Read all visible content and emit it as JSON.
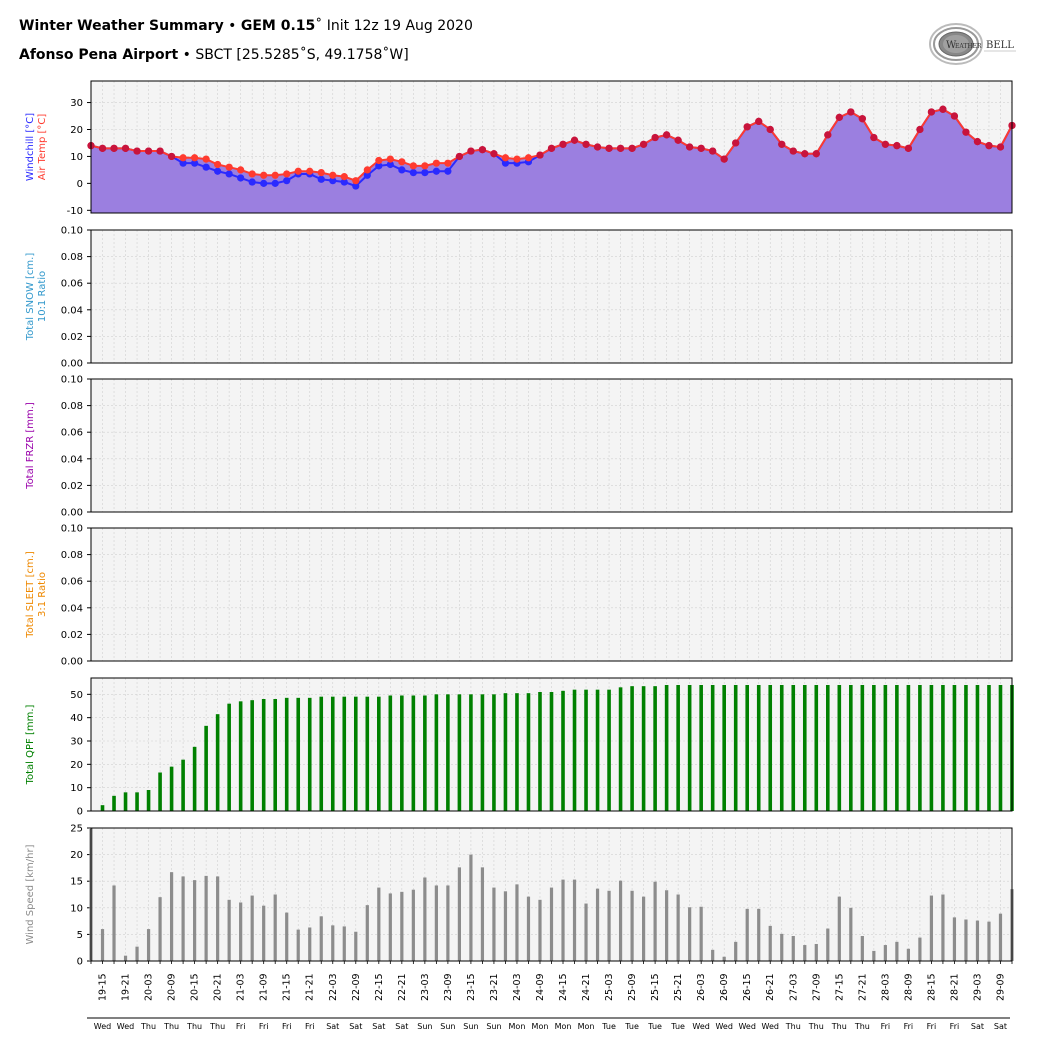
{
  "header": {
    "title_bold": "Winter Weather Summary",
    "sep": " • ",
    "model_bold": "GEM 0.15",
    "degree": "˚",
    "init": " Init 12z 19 Aug 2020",
    "station_bold": "Afonso Pena Airport",
    "station_info": "SBCT [25.5285˚S, 49.1758˚W]"
  },
  "logo": {
    "text_big": "W",
    "text_small": "EATHER",
    "text_bell": "BELL",
    "icon": "weatherbell-swirl-icon"
  },
  "colors": {
    "temp_fill": "#9b7fe0",
    "airtemp": "#ff3b2f",
    "windchill": "#2a2aff",
    "overlap": "#c8143c",
    "qpf": "#008000",
    "wind": "#8c8c8c",
    "snow_label": "#3399cc",
    "frzr_label": "#9900aa",
    "sleet_label": "#ee8800",
    "qpf_label": "#008000",
    "wind_label": "#8c8c8c",
    "panel_bg": "#f4f4f4",
    "grid": "#d0d0d0"
  },
  "chart_data": [
    {
      "type": "line",
      "ylabel_parts": [
        "Windchill [°C]",
        "Air Temp [°C]"
      ],
      "ylim": [
        -11,
        38
      ],
      "yticks": [
        -10,
        0,
        10,
        20,
        30
      ],
      "grid": true,
      "series": [
        {
          "name": "Air Temp",
          "values": [
            14,
            13,
            13,
            13,
            12,
            12,
            12,
            10,
            9.5,
            9.5,
            9,
            7,
            6,
            5,
            3.5,
            3,
            3,
            3.5,
            4.5,
            4.5,
            4,
            3,
            2.5,
            1,
            5,
            8.5,
            9,
            8,
            6.5,
            6.5,
            7.5,
            7.5,
            10,
            12,
            12.5,
            11,
            9.5,
            9,
            9.5,
            10.5,
            13,
            14.5,
            16,
            14.5,
            13.5,
            13,
            13,
            13,
            14.5,
            17,
            18,
            16,
            13.5,
            13,
            12,
            9,
            15,
            21,
            23,
            20,
            14.5,
            12,
            11,
            11,
            18,
            24.5,
            26.5,
            24,
            17,
            14.5,
            14,
            13,
            20,
            26.5,
            27.5,
            25,
            19,
            15.5,
            14,
            13.5,
            21.5
          ]
        },
        {
          "name": "Windchill",
          "values": [
            14,
            13,
            13,
            13,
            12,
            12,
            12,
            10,
            7.5,
            7.5,
            6,
            4.5,
            3.5,
            2,
            0.5,
            0,
            0,
            1,
            3.5,
            3.5,
            1.5,
            1,
            0.5,
            -1,
            3,
            6.5,
            7,
            5,
            4,
            4,
            4.5,
            4.5,
            10,
            12,
            12.5,
            11,
            7.5,
            7.5,
            8,
            10.5,
            13,
            14.5,
            16,
            14.5,
            13.5,
            13,
            13,
            13,
            14.5,
            17,
            18,
            16,
            13.5,
            13,
            12,
            9,
            15,
            21,
            23,
            20,
            14.5,
            12,
            11,
            11,
            18,
            24.5,
            26.5,
            24,
            17,
            14.5,
            14,
            13,
            20,
            26.5,
            27.5,
            25,
            19,
            15.5,
            14,
            13.5,
            21.5
          ]
        }
      ]
    },
    {
      "type": "bar",
      "ylabel": "Total SNOW [cm.]",
      "ylabel2": "10:1 Ratio",
      "ylim": [
        0,
        0.1
      ],
      "yticks": [
        "0.00",
        "0.02",
        "0.04",
        "0.06",
        "0.08",
        "0.10"
      ],
      "grid": true,
      "values": []
    },
    {
      "type": "bar",
      "ylabel": "Total FRZR [mm.]",
      "ylim": [
        0,
        0.1
      ],
      "yticks": [
        "0.00",
        "0.02",
        "0.04",
        "0.06",
        "0.08",
        "0.10"
      ],
      "grid": true,
      "values": []
    },
    {
      "type": "bar",
      "ylabel": "Total SLEET [cm.]",
      "ylabel2": "3:1 Ratio",
      "ylim": [
        0,
        0.1
      ],
      "yticks": [
        "0.00",
        "0.02",
        "0.04",
        "0.06",
        "0.08",
        "0.10"
      ],
      "grid": true,
      "values": []
    },
    {
      "type": "bar",
      "ylabel": "Total QPF [mm.]",
      "ylim": [
        0,
        57
      ],
      "yticks": [
        0,
        10,
        20,
        30,
        40,
        50
      ],
      "grid": true,
      "values": [
        0,
        2.5,
        6.5,
        8,
        8,
        9,
        16.5,
        19,
        22,
        27.5,
        36.5,
        41.5,
        46,
        47,
        47.5,
        48,
        48,
        48.5,
        48.5,
        48.5,
        49,
        49,
        49,
        49,
        49,
        49,
        49.5,
        49.5,
        49.5,
        49.5,
        50,
        50,
        50,
        50,
        50,
        50,
        50.5,
        50.5,
        50.5,
        51,
        51,
        51.5,
        52,
        52,
        52,
        52,
        53,
        53.5,
        53.5,
        53.5,
        54,
        54,
        54,
        54,
        54,
        54,
        54,
        54,
        54,
        54,
        54,
        54,
        54,
        54,
        54,
        54,
        54,
        54,
        54,
        54,
        54,
        54,
        54,
        54,
        54,
        54,
        54,
        54,
        54,
        54,
        54
      ]
    },
    {
      "type": "bar",
      "ylabel": "Wind Speed [km/hr]",
      "ylim": [
        0,
        25
      ],
      "yticks": [
        0,
        5,
        10,
        15,
        20,
        25
      ],
      "grid": true,
      "values": [
        25,
        6,
        14.2,
        1,
        2.7,
        6,
        12,
        16.7,
        15.9,
        15.2,
        16,
        15.9,
        11.5,
        11,
        12.3,
        10.4,
        12.5,
        9.1,
        5.9,
        6.3,
        8.4,
        6.7,
        6.5,
        5.5,
        10.5,
        13.8,
        12.7,
        13,
        13.4,
        15.7,
        14.2,
        14.2,
        17.6,
        20,
        17.6,
        13.8,
        13.1,
        14.4,
        12.1,
        11.5,
        13.8,
        15.3,
        15.3,
        10.8,
        13.6,
        13.2,
        15.1,
        13.2,
        12.1,
        14.9,
        13.3,
        12.5,
        10.1,
        10.2,
        2.1,
        0.8,
        3.6,
        9.8,
        9.8,
        6.6,
        5.1,
        4.7,
        3,
        3.2,
        6.1,
        12.1,
        10,
        4.7,
        1.9,
        3,
        3.6,
        2.3,
        4.4,
        12.3,
        12.5,
        8.2,
        7.8,
        7.6,
        7.4,
        8.9,
        13.5
      ]
    }
  ],
  "x_axis": {
    "labels": [
      "19-15",
      "19-21",
      "20-03",
      "20-09",
      "20-15",
      "20-21",
      "21-03",
      "21-09",
      "21-15",
      "21-21",
      "22-03",
      "22-09",
      "22-15",
      "22-21",
      "23-03",
      "23-09",
      "23-15",
      "23-21",
      "24-03",
      "24-09",
      "24-15",
      "24-21",
      "25-03",
      "25-09",
      "25-15",
      "25-21",
      "26-03",
      "26-09",
      "26-15",
      "26-21",
      "27-03",
      "27-09",
      "27-15",
      "27-21",
      "28-03",
      "28-09",
      "28-15",
      "28-21",
      "29-03",
      "29-09"
    ],
    "days": [
      "Wed",
      "Wed",
      "Thu",
      "Thu",
      "Thu",
      "Thu",
      "Fri",
      "Fri",
      "Fri",
      "Fri",
      "Sat",
      "Sat",
      "Sat",
      "Sat",
      "Sun",
      "Sun",
      "Sun",
      "Sun",
      "Mon",
      "Mon",
      "Mon",
      "Mon",
      "Tue",
      "Tue",
      "Tue",
      "Tue",
      "Wed",
      "Wed",
      "Wed",
      "Wed",
      "Thu",
      "Thu",
      "Thu",
      "Thu",
      "Fri",
      "Fri",
      "Fri",
      "Fri",
      "Sat",
      "Sat"
    ]
  }
}
